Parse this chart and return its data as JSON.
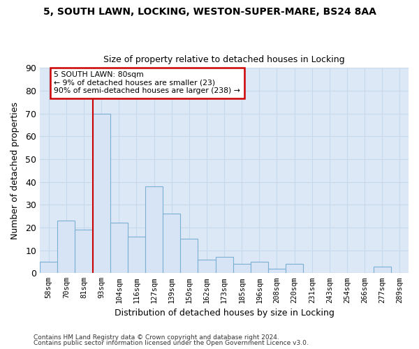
{
  "title1": "5, SOUTH LAWN, LOCKING, WESTON-SUPER-MARE, BS24 8AA",
  "title2": "Size of property relative to detached houses in Locking",
  "xlabel": "Distribution of detached houses by size in Locking",
  "ylabel": "Number of detached properties",
  "categories": [
    "58sqm",
    "70sqm",
    "81sqm",
    "93sqm",
    "104sqm",
    "116sqm",
    "127sqm",
    "139sqm",
    "150sqm",
    "162sqm",
    "173sqm",
    "185sqm",
    "196sqm",
    "208sqm",
    "220sqm",
    "231sqm",
    "243sqm",
    "254sqm",
    "266sqm",
    "277sqm",
    "289sqm"
  ],
  "values": [
    5,
    23,
    19,
    70,
    22,
    16,
    38,
    26,
    15,
    6,
    7,
    4,
    5,
    2,
    4,
    0,
    0,
    0,
    0,
    3,
    0
  ],
  "bar_color": "#d6e4f5",
  "bar_edge_color": "#7bafd4",
  "bar_width": 1.0,
  "redline_x": 2.5,
  "highlight_color": "#cc0000",
  "annotation_line1": "5 SOUTH LAWN: 80sqm",
  "annotation_line2": "← 9% of detached houses are smaller (23)",
  "annotation_line3": "90% of semi-detached houses are larger (238) →",
  "annotation_box_color": "#ffffff",
  "annotation_box_edge": "#cc0000",
  "ylim": [
    0,
    90
  ],
  "yticks": [
    0,
    10,
    20,
    30,
    40,
    50,
    60,
    70,
    80,
    90
  ],
  "grid_color": "#c8d8ec",
  "bg_color": "#dce8f5",
  "footer1": "Contains HM Land Registry data © Crown copyright and database right 2024.",
  "footer2": "Contains public sector information licensed under the Open Government Licence v3.0."
}
